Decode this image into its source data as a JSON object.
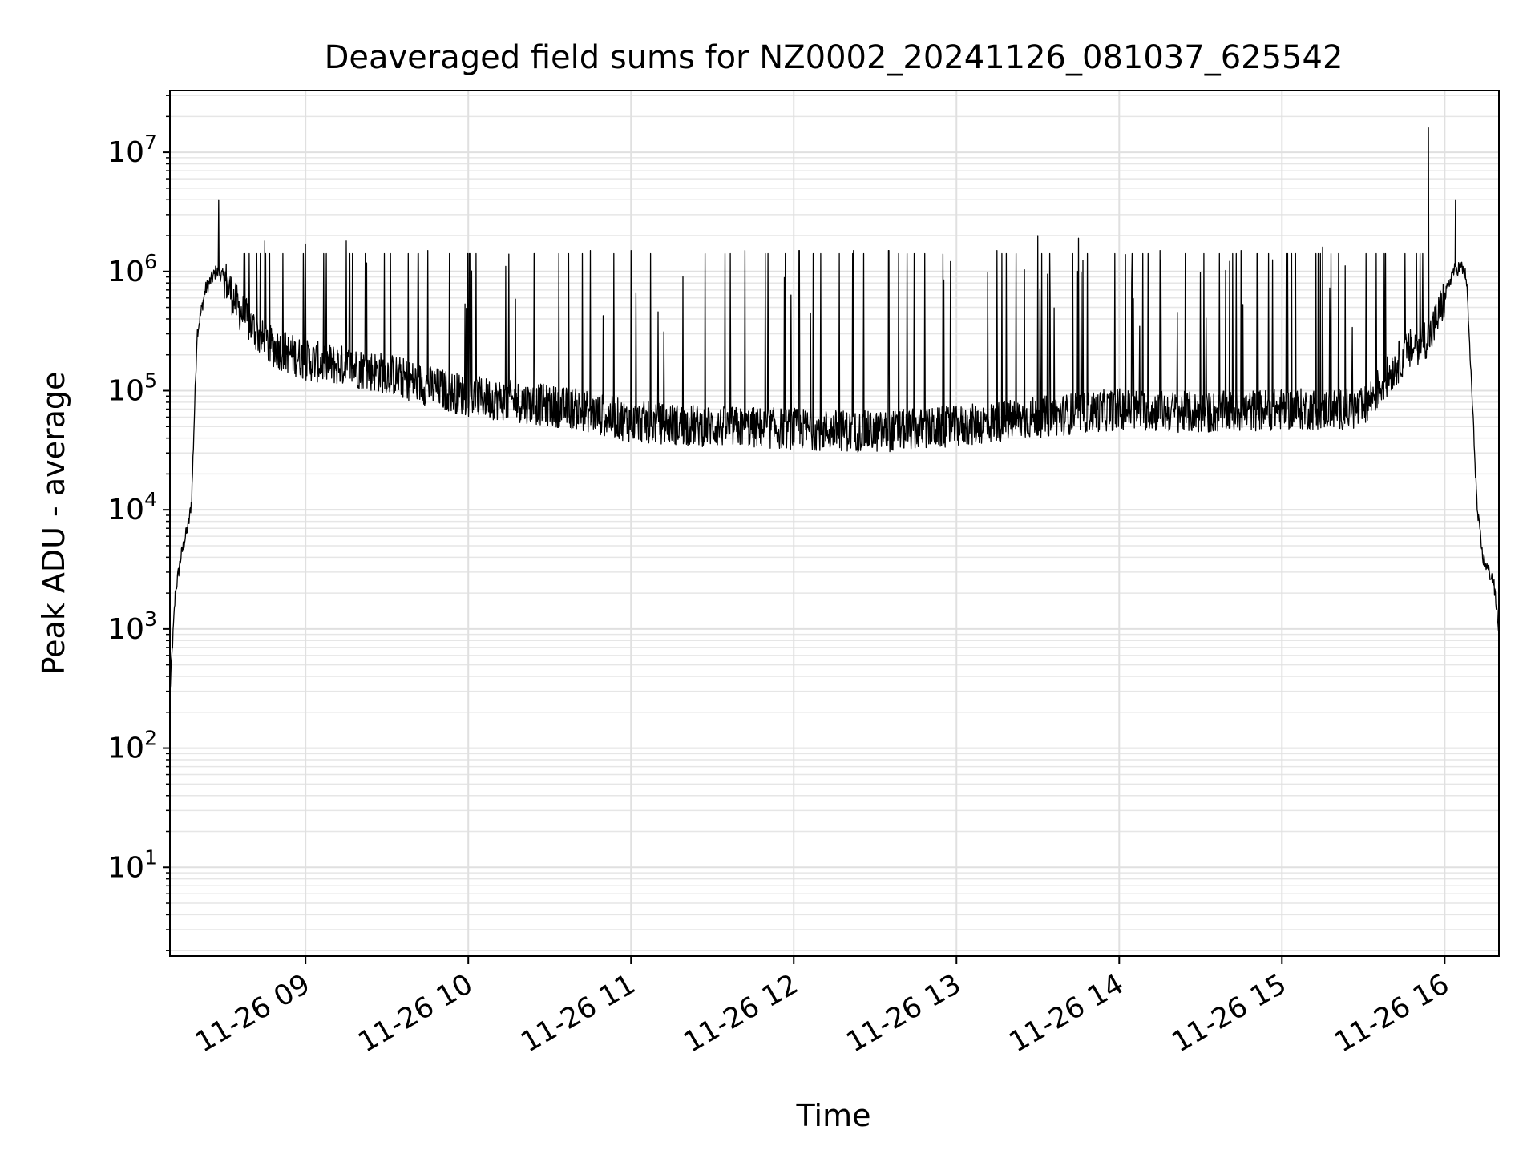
{
  "chart_data": {
    "type": "line",
    "title": "Deaveraged field sums for NZ0002_20241126_081037_625542",
    "xlabel": "Time",
    "ylabel": "Peak ADU - average",
    "x_scale": "time",
    "y_scale": "log",
    "xlim": [
      "2024-11-26 08:10",
      "2024-11-26 16:20"
    ],
    "ylim": [
      1.8,
      33000000
    ],
    "x_ticks": [
      "2024-11-26 09:00",
      "2024-11-26 10:00",
      "2024-11-26 11:00",
      "2024-11-26 12:00",
      "2024-11-26 13:00",
      "2024-11-26 14:00",
      "2024-11-26 15:00",
      "2024-11-26 16:00"
    ],
    "x_tick_labels": [
      "11-26 09",
      "11-26 10",
      "11-26 11",
      "11-26 12",
      "11-26 13",
      "11-26 14",
      "11-26 15",
      "11-26 16"
    ],
    "y_ticks": [
      10,
      100,
      1000,
      10000,
      100000,
      1000000,
      10000000
    ],
    "y_tick_labels": [
      {
        "base": "10",
        "exp": "1"
      },
      {
        "base": "10",
        "exp": "2"
      },
      {
        "base": "10",
        "exp": "3"
      },
      {
        "base": "10",
        "exp": "4"
      },
      {
        "base": "10",
        "exp": "5"
      },
      {
        "base": "10",
        "exp": "6"
      },
      {
        "base": "10",
        "exp": "7"
      }
    ],
    "grid": true,
    "series": [
      {
        "color": "#000000",
        "baseline": [
          [
            "2024-11-26 08:10",
            300
          ],
          [
            "2024-11-26 08:12",
            2000
          ],
          [
            "2024-11-26 08:14",
            4000
          ],
          [
            "2024-11-26 08:17",
            8000
          ],
          [
            "2024-11-26 08:18",
            12000
          ],
          [
            "2024-11-26 08:20",
            300000
          ],
          [
            "2024-11-26 08:23",
            700000
          ],
          [
            "2024-11-26 08:27",
            1000000
          ],
          [
            "2024-11-26 08:30",
            900000
          ],
          [
            "2024-11-26 08:35",
            500000
          ],
          [
            "2024-11-26 08:45",
            250000
          ],
          [
            "2024-11-26 09:00",
            180000
          ],
          [
            "2024-11-26 09:15",
            160000
          ],
          [
            "2024-11-26 09:30",
            140000
          ],
          [
            "2024-11-26 09:45",
            110000
          ],
          [
            "2024-11-26 10:00",
            90000
          ],
          [
            "2024-11-26 10:20",
            80000
          ],
          [
            "2024-11-26 10:40",
            70000
          ],
          [
            "2024-11-26 11:00",
            55000
          ],
          [
            "2024-11-26 11:30",
            50000
          ],
          [
            "2024-11-26 12:00",
            48000
          ],
          [
            "2024-11-26 12:30",
            45000
          ],
          [
            "2024-11-26 13:00",
            50000
          ],
          [
            "2024-11-26 13:30",
            60000
          ],
          [
            "2024-11-26 14:00",
            70000
          ],
          [
            "2024-11-26 14:30",
            65000
          ],
          [
            "2024-11-26 15:00",
            70000
          ],
          [
            "2024-11-26 15:30",
            70000
          ],
          [
            "2024-11-26 15:35",
            100000
          ],
          [
            "2024-11-26 15:45",
            200000
          ],
          [
            "2024-11-26 15:55",
            300000
          ],
          [
            "2024-11-26 16:00",
            600000
          ],
          [
            "2024-11-26 16:03",
            1000000
          ],
          [
            "2024-11-26 16:06",
            1100000
          ],
          [
            "2024-11-26 16:08",
            900000
          ],
          [
            "2024-11-26 16:10",
            100000
          ],
          [
            "2024-11-26 16:12",
            10000
          ],
          [
            "2024-11-26 16:14",
            4000
          ],
          [
            "2024-11-26 16:18",
            2500
          ],
          [
            "2024-11-26 16:20",
            1000
          ]
        ],
        "spikes": [
          [
            "2024-11-26 08:28",
            4000000
          ],
          [
            "2024-11-26 08:45",
            1800000
          ],
          [
            "2024-11-26 09:00",
            1700000
          ],
          [
            "2024-11-26 09:15",
            1800000
          ],
          [
            "2024-11-26 09:45",
            1500000
          ],
          [
            "2024-11-26 10:15",
            1400000
          ],
          [
            "2024-11-26 10:45",
            1500000
          ],
          [
            "2024-11-26 11:00",
            1500000
          ],
          [
            "2024-11-26 11:42",
            1500000
          ],
          [
            "2024-11-26 12:02",
            1500000
          ],
          [
            "2024-11-26 12:22",
            1500000
          ],
          [
            "2024-11-26 12:35",
            1500000
          ],
          [
            "2024-11-26 12:55",
            1400000
          ],
          [
            "2024-11-26 13:15",
            1500000
          ],
          [
            "2024-11-26 13:30",
            2000000
          ],
          [
            "2024-11-26 13:45",
            1900000
          ],
          [
            "2024-11-26 14:15",
            1500000
          ],
          [
            "2024-11-26 14:45",
            1500000
          ],
          [
            "2024-11-26 15:15",
            1600000
          ],
          [
            "2024-11-26 15:54",
            16000000
          ],
          [
            "2024-11-26 16:04",
            4000000
          ]
        ]
      }
    ]
  }
}
